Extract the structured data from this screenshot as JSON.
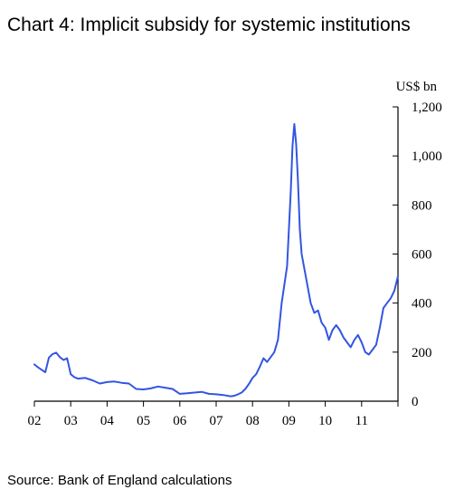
{
  "title": "Chart 4: Implicit subsidy for systemic institutions",
  "source": "Source: Bank of England calculations",
  "colors": {
    "line": "#3355e0",
    "axis": "#000000"
  },
  "chart_data": {
    "type": "line",
    "title": "Chart 4: Implicit subsidy for systemic institutions",
    "ylabel": "US$ bn",
    "yaxis_position": "right",
    "ylim": [
      0,
      1200
    ],
    "yticks": [
      0,
      200,
      400,
      600,
      800,
      1000,
      1200
    ],
    "ytick_labels": [
      "0",
      "200",
      "400",
      "600",
      "800",
      "1,000",
      "1,200"
    ],
    "xlim": [
      2002,
      2012
    ],
    "xticks": [
      2002,
      2003,
      2004,
      2005,
      2006,
      2007,
      2008,
      2009,
      2010,
      2011
    ],
    "xtick_labels": [
      "02",
      "03",
      "04",
      "05",
      "06",
      "07",
      "08",
      "09",
      "10",
      "11"
    ],
    "grid": false,
    "series": [
      {
        "x": [
          2002.0,
          2002.1,
          2002.2,
          2002.3,
          2002.4,
          2002.5,
          2002.6,
          2002.7,
          2002.8,
          2002.9,
          2003.0,
          2003.1,
          2003.2,
          2003.4,
          2003.6,
          2003.8,
          2004.0,
          2004.2,
          2004.4,
          2004.6,
          2004.8,
          2005.0,
          2005.2,
          2005.4,
          2005.6,
          2005.8,
          2006.0,
          2006.2,
          2006.4,
          2006.6,
          2006.8,
          2007.0,
          2007.2,
          2007.4,
          2007.5,
          2007.6,
          2007.7,
          2007.8,
          2007.9,
          2008.0,
          2008.1,
          2008.2,
          2008.3,
          2008.4,
          2008.5,
          2008.6,
          2008.7,
          2008.8,
          2008.9,
          2008.95,
          2009.0,
          2009.05,
          2009.1,
          2009.15,
          2009.2,
          2009.25,
          2009.3,
          2009.35,
          2009.4,
          2009.5,
          2009.6,
          2009.7,
          2009.8,
          2009.9,
          2010.0,
          2010.1,
          2010.2,
          2010.3,
          2010.4,
          2010.5,
          2010.6,
          2010.7,
          2010.8,
          2010.9,
          2011.0,
          2011.1,
          2011.2,
          2011.3,
          2011.4,
          2011.5,
          2011.6,
          2011.7,
          2011.8,
          2011.9,
          2012.0
        ],
        "values": [
          150,
          138,
          128,
          118,
          178,
          192,
          198,
          180,
          168,
          175,
          110,
          98,
          92,
          95,
          85,
          72,
          78,
          80,
          75,
          72,
          50,
          48,
          52,
          60,
          55,
          50,
          30,
          32,
          35,
          38,
          30,
          28,
          25,
          20,
          22,
          28,
          35,
          50,
          70,
          95,
          110,
          140,
          175,
          160,
          180,
          200,
          250,
          400,
          500,
          550,
          700,
          850,
          1040,
          1130,
          1050,
          900,
          700,
          600,
          560,
          480,
          400,
          360,
          370,
          320,
          300,
          250,
          290,
          310,
          290,
          260,
          240,
          220,
          250,
          270,
          240,
          200,
          190,
          210,
          230,
          300,
          380,
          400,
          420,
          450,
          510
        ]
      }
    ]
  }
}
